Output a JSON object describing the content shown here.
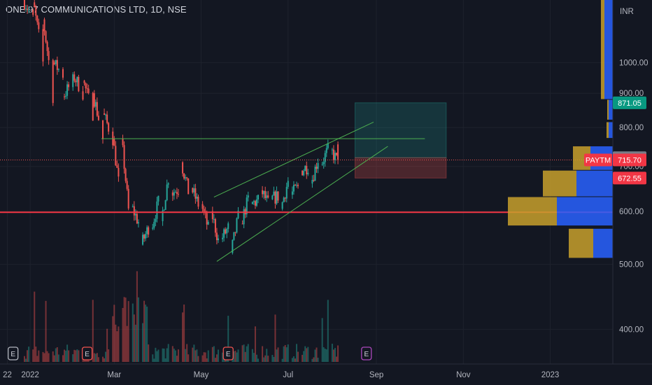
{
  "header": {
    "title": "ONE 97 COMMUNICATIONS LTD, 1D, NSE"
  },
  "colors": {
    "background": "#131722",
    "up": "#26a69a",
    "down": "#ef5350",
    "grid": "#1e222d",
    "support_line": "#f23645",
    "channel": "#4caf50",
    "vp_up": "#c8a02c",
    "vp_down": "#2962ff"
  },
  "chart_data": {
    "type": "candlestick",
    "symbol": "PAYTM",
    "currency": "INR",
    "y_scale": "log",
    "ylim": [
      355,
      1240
    ],
    "x_ticks": [
      "22",
      "2022",
      "Mar",
      "May",
      "Jul",
      "Sep",
      "Nov",
      "2023"
    ],
    "y_ticks": [
      400,
      500,
      600,
      700,
      800,
      900,
      1000
    ],
    "price_labels": {
      "last": {
        "symbol": "PAYTM",
        "value": "715.70"
      },
      "target": "871.05",
      "entry": "721.30",
      "stop": "672.55"
    },
    "events": [
      {
        "date": "2021-12-20",
        "type": "E"
      },
      {
        "date": "2022-02-10",
        "type": "E"
      },
      {
        "date": "2022-05-20",
        "type": "E"
      },
      {
        "date": "2022-08-25",
        "type": "E"
      }
    ],
    "series": [
      {
        "date": "2021-12-28",
        "open": 1245,
        "close": 1230
      },
      {
        "date": "2022-01-04",
        "open": 1230,
        "close": 1160
      },
      {
        "date": "2022-01-11",
        "open": 1160,
        "close": 1000
      },
      {
        "date": "2022-01-18",
        "open": 1000,
        "close": 890
      },
      {
        "date": "2022-01-25",
        "open": 890,
        "close": 960
      },
      {
        "date": "2022-02-01",
        "open": 960,
        "close": 940
      },
      {
        "date": "2022-02-08",
        "open": 940,
        "close": 900
      },
      {
        "date": "2022-02-15",
        "open": 900,
        "close": 840
      },
      {
        "date": "2022-02-22",
        "open": 840,
        "close": 770
      },
      {
        "date": "2022-03-01",
        "open": 770,
        "close": 770
      },
      {
        "date": "2022-03-07",
        "open": 770,
        "close": 610
      },
      {
        "date": "2022-03-14",
        "open": 610,
        "close": 535
      },
      {
        "date": "2022-03-21",
        "open": 535,
        "close": 565
      },
      {
        "date": "2022-03-28",
        "open": 565,
        "close": 580
      },
      {
        "date": "2022-04-04",
        "open": 580,
        "close": 640
      },
      {
        "date": "2022-04-11",
        "open": 640,
        "close": 710
      },
      {
        "date": "2022-04-18",
        "open": 710,
        "close": 650
      },
      {
        "date": "2022-04-25",
        "open": 650,
        "close": 615
      },
      {
        "date": "2022-05-02",
        "open": 615,
        "close": 600
      },
      {
        "date": "2022-05-09",
        "open": 600,
        "close": 545
      },
      {
        "date": "2022-05-16",
        "open": 545,
        "close": 520
      },
      {
        "date": "2022-05-23",
        "open": 520,
        "close": 575
      },
      {
        "date": "2022-05-30",
        "open": 575,
        "close": 615
      },
      {
        "date": "2022-06-06",
        "open": 615,
        "close": 645
      },
      {
        "date": "2022-06-13",
        "open": 645,
        "close": 625
      },
      {
        "date": "2022-06-20",
        "open": 625,
        "close": 605
      },
      {
        "date": "2022-06-27",
        "open": 605,
        "close": 635
      },
      {
        "date": "2022-07-04",
        "open": 635,
        "close": 690
      },
      {
        "date": "2022-07-11",
        "open": 690,
        "close": 660
      },
      {
        "date": "2022-07-18",
        "open": 660,
        "close": 705
      },
      {
        "date": "2022-07-25",
        "open": 705,
        "close": 740
      },
      {
        "date": "2022-08-01",
        "open": 740,
        "close": 755
      },
      {
        "date": "2022-08-05",
        "open": 755,
        "close": 716
      }
    ],
    "volume_profile": [
      {
        "price_low": 510,
        "price_high": 565,
        "up_volume": 35,
        "down_volume": 28
      },
      {
        "price_low": 570,
        "price_high": 630,
        "up_volume": 70,
        "down_volume": 80
      },
      {
        "price_low": 630,
        "price_high": 690,
        "up_volume": 48,
        "down_volume": 52
      },
      {
        "price_low": 690,
        "price_high": 750,
        "up_volume": 25,
        "down_volume": 32
      },
      {
        "price_low": 770,
        "price_high": 815,
        "up_volume": 3,
        "down_volume": 6
      },
      {
        "price_low": 820,
        "price_high": 880,
        "up_volume": 2,
        "down_volume": 6
      },
      {
        "price_low": 880,
        "price_high": 1240,
        "up_volume": 5,
        "down_volume": 12
      }
    ]
  }
}
